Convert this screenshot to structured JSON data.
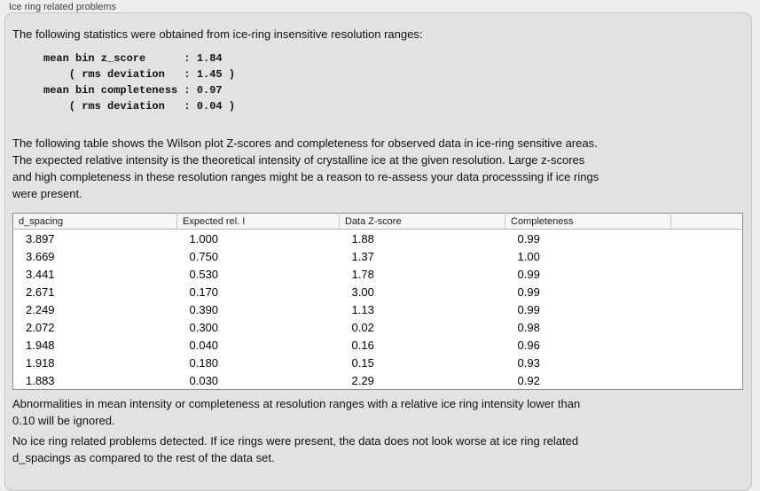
{
  "group": {
    "title": "Ice ring related problems"
  },
  "intro_text": "The following statistics were obtained from ice-ring insensitive resolution ranges:",
  "stats": {
    "block": "mean bin z_score      : 1.84\n    ( rms deviation   : 1.45 )\nmean bin completeness : 0.97\n    ( rms deviation   : 0.04 )",
    "mean_bin_z_score": "1.84",
    "z_score_rms_deviation": "1.45",
    "mean_bin_completeness": "0.97",
    "completeness_rms_deviation": "0.04"
  },
  "table_description": "The following table shows the Wilson plot Z-scores and completeness for observed data in ice-ring sensitive areas.\nThe expected relative intensity is the theoretical intensity of crystalline ice at the given resolution. Large z-scores\nand high completeness in these resolution ranges might be a reason to re-assess your data processsing if ice rings\nwere present.",
  "table": {
    "headers": [
      "d_spacing",
      "Expected rel. I",
      "Data Z-score",
      "Completeness",
      ""
    ],
    "rows": [
      [
        "3.897",
        "1.000",
        "1.88",
        "0.99"
      ],
      [
        "3.669",
        "0.750",
        "1.37",
        "1.00"
      ],
      [
        "3.441",
        "0.530",
        "1.78",
        "0.99"
      ],
      [
        "2.671",
        "0.170",
        "3.00",
        "0.99"
      ],
      [
        "2.249",
        "0.390",
        "1.13",
        "0.99"
      ],
      [
        "2.072",
        "0.300",
        "0.02",
        "0.98"
      ],
      [
        "1.948",
        "0.040",
        "0.16",
        "0.96"
      ],
      [
        "1.918",
        "0.180",
        "0.15",
        "0.93"
      ],
      [
        "1.883",
        "0.030",
        "2.29",
        "0.92"
      ]
    ]
  },
  "footnote": "Abnormalities in mean intensity or completeness at resolution ranges with a relative ice ring intensity lower than\n0.10 will be ignored.",
  "conclusion": "No ice ring related problems detected. If ice rings were present, the data does not look worse at ice ring related\nd_spacings as compared to the rest of the data set.",
  "colors": {
    "page_background": "#eeeeee",
    "panel_background": "#e2e2e2",
    "table_border": "#8c8c8c",
    "table_header_background": "#f6f6f6"
  }
}
